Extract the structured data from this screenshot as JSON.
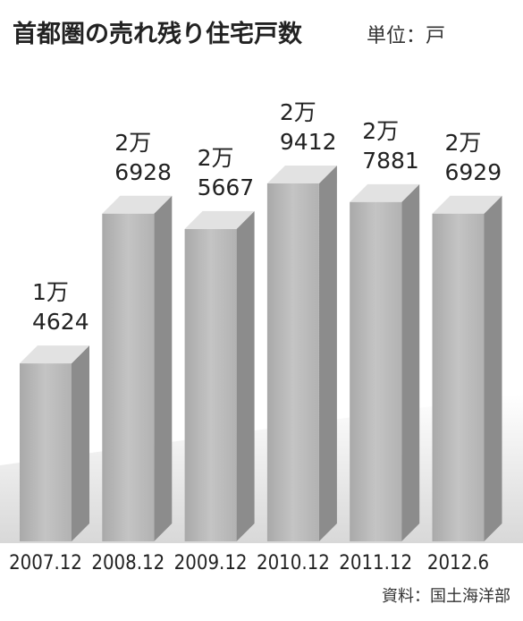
{
  "chart_data": {
    "type": "bar3d",
    "title": "首都圏の売れ残り住宅戸数",
    "subtitle": "単位：戸",
    "source": "資料：国土海洋部",
    "categories": [
      "2007.12",
      "2008.12",
      "2009.12",
      "2010.12",
      "2011.12",
      "2012.6"
    ],
    "values": [
      14624,
      26928,
      25667,
      29412,
      27881,
      26929
    ],
    "value_labels": [
      "1万\n4624",
      "2万\n6928",
      "2万\n5667",
      "2万\n9412",
      "2万\n7881",
      "2万\n6929"
    ],
    "color": "#b9b9b9"
  }
}
